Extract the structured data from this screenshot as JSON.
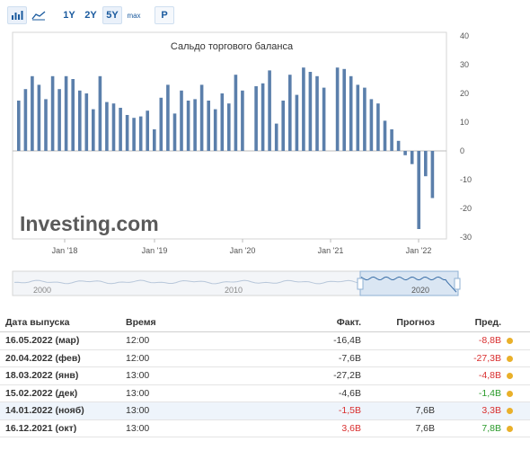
{
  "toolbar": {
    "chart_types": [
      "bar-chart-icon",
      "area-chart-icon"
    ],
    "ranges": [
      "1Y",
      "2Y",
      "5Y",
      "max"
    ],
    "active_range": "5Y",
    "p_button": "P"
  },
  "colors": {
    "bar": "#5b7fab",
    "negative": "#d92e2e",
    "positive": "#2a9a2a",
    "dot": "#e9b02a"
  },
  "chart_data": {
    "type": "bar",
    "title": "Сальдо торгового баланса",
    "ylim": [
      -30,
      40
    ],
    "yticks": [
      "40",
      "30",
      "20",
      "10",
      "0",
      "-10",
      "-20",
      "-30"
    ],
    "x_labels": [
      "Jan '18",
      "Jan '19",
      "Jan '20",
      "Jan '21",
      "Jan '22"
    ],
    "values": [
      17.5,
      21.5,
      26,
      23,
      18,
      26,
      21.5,
      26,
      25,
      21,
      20,
      14.5,
      26,
      17,
      16.5,
      15,
      12.5,
      11.5,
      12,
      14,
      7.5,
      18.5,
      23,
      13,
      21,
      17.5,
      18,
      23,
      17.5,
      14.5,
      20,
      16.5,
      26.5,
      21,
      0,
      22.5,
      23.5,
      28,
      9.5,
      17.5,
      26.5,
      19.5,
      29,
      27.5,
      26,
      22,
      0,
      29,
      28.5,
      26,
      23,
      22,
      18,
      16.5,
      10.5,
      7.5,
      3.5,
      -1.5,
      -4.6,
      -27.2,
      -8.8,
      -16.4
    ],
    "watermark": "Investing.com",
    "navigator_labels": [
      "2000",
      "2010",
      "2020"
    ]
  },
  "table": {
    "headers": {
      "date": "Дата выпуска",
      "time": "Время",
      "fact": "Факт.",
      "forecast": "Прогноз",
      "prev": "Пред."
    },
    "rows": [
      {
        "date": "16.05.2022 (мар)",
        "time": "12:00",
        "fact": "-16,4B",
        "fact_cls": "neutral",
        "forecast": "",
        "prev": "-8,8B",
        "prev_cls": "neg",
        "highlight": false
      },
      {
        "date": "20.04.2022 (фев)",
        "time": "12:00",
        "fact": "-7,6B",
        "fact_cls": "neutral",
        "forecast": "",
        "prev": "-27,3B",
        "prev_cls": "neg",
        "highlight": false
      },
      {
        "date": "18.03.2022 (янв)",
        "time": "13:00",
        "fact": "-27,2B",
        "fact_cls": "neutral",
        "forecast": "",
        "prev": "-4,8B",
        "prev_cls": "neg",
        "highlight": false
      },
      {
        "date": "15.02.2022 (дек)",
        "time": "13:00",
        "fact": "-4,6B",
        "fact_cls": "neutral",
        "forecast": "",
        "prev": "-1,4B",
        "prev_cls": "pos",
        "highlight": false
      },
      {
        "date": "14.01.2022 (нояб)",
        "time": "13:00",
        "fact": "-1,5B",
        "fact_cls": "neg",
        "forecast": "7,6B",
        "prev": "3,3B",
        "prev_cls": "neg",
        "highlight": true
      },
      {
        "date": "16.12.2021 (окт)",
        "time": "13:00",
        "fact": "3,6B",
        "fact_cls": "neg",
        "forecast": "7,6B",
        "prev": "7,8B",
        "prev_cls": "pos",
        "highlight": false
      }
    ]
  }
}
